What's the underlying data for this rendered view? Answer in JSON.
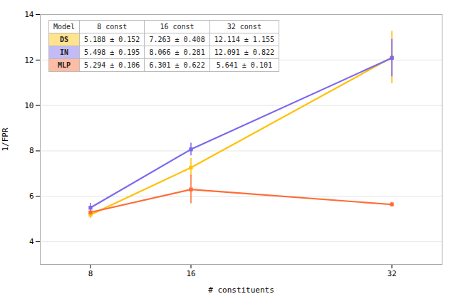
{
  "chart_data": {
    "type": "line",
    "xlabel": "# constituents",
    "ylabel": "1/FPR",
    "x": [
      8,
      16,
      32
    ],
    "marker": "square",
    "series": [
      {
        "name": "DS",
        "color": "#FFC107",
        "values": [
          5.188,
          7.263,
          12.114
        ],
        "errors": [
          0.152,
          0.408,
          1.155
        ]
      },
      {
        "name": "IN",
        "color": "#7B68EE",
        "values": [
          5.498,
          8.066,
          12.091
        ],
        "errors": [
          0.195,
          0.281,
          0.822
        ]
      },
      {
        "name": "MLP",
        "color": "#FF6B35",
        "values": [
          5.294,
          6.301,
          5.641
        ],
        "errors": [
          0.106,
          0.622,
          0.101
        ]
      }
    ],
    "xlim": [
      4,
      36
    ],
    "xticks": [
      8,
      16,
      32
    ],
    "ylim": [
      3,
      14
    ],
    "yticks": [
      4,
      6,
      8,
      10,
      12,
      14
    ],
    "grid": "y",
    "table": {
      "columns": [
        "Model",
        "8 const",
        "16 const",
        "32 const"
      ],
      "rows": [
        [
          "DS",
          "5.188 ± 0.152",
          "7.263 ± 0.408",
          "12.114 ± 1.155"
        ],
        [
          "IN",
          "5.498 ± 0.195",
          "8.066 ± 0.281",
          "12.091 ± 0.822"
        ],
        [
          "MLP",
          "5.294 ± 0.106",
          "6.301 ± 0.622",
          "5.641 ± 0.101"
        ]
      ],
      "colors": [
        "#FFC107",
        "#7B68EE",
        "#FF6B35"
      ]
    }
  }
}
